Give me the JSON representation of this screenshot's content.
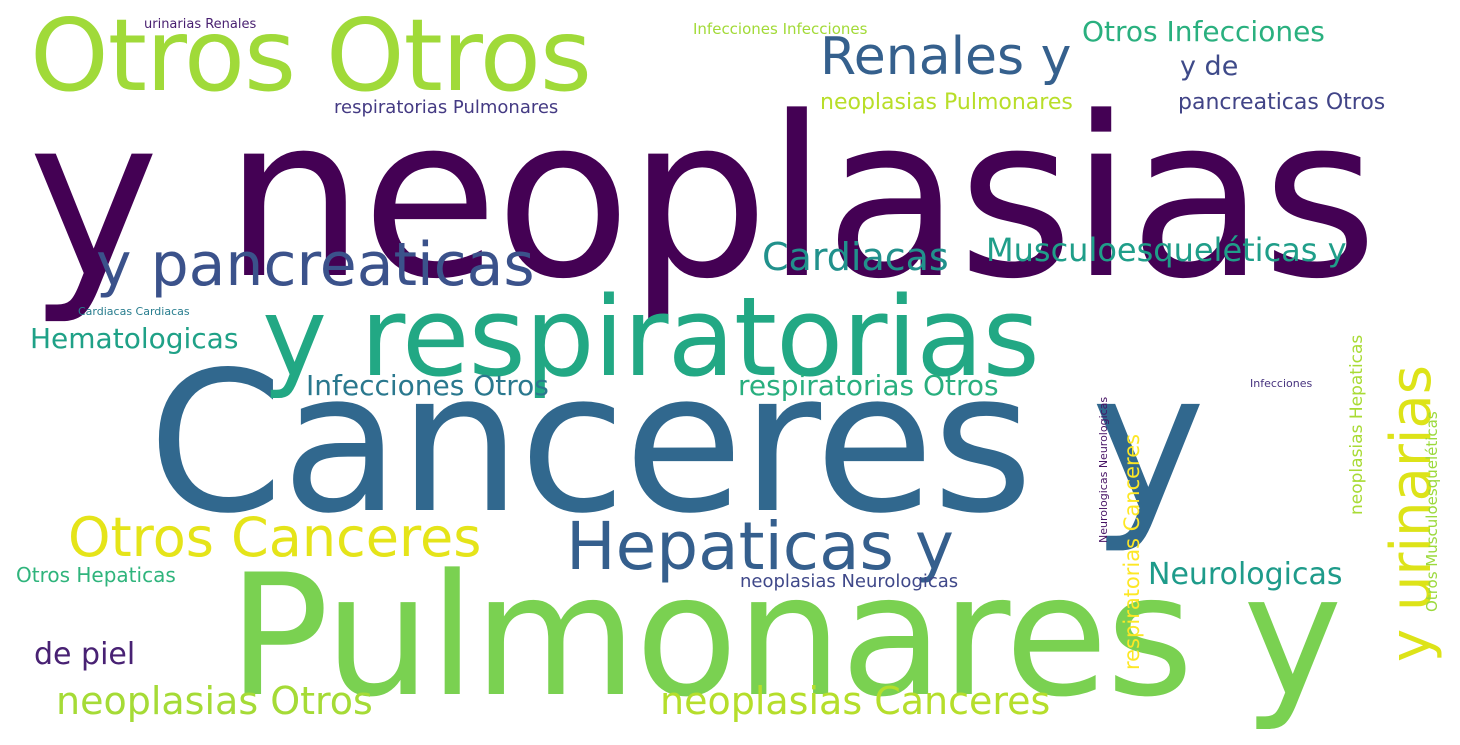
{
  "words": [
    {
      "text": "y neoplasias",
      "color": "#440154"
    },
    {
      "text": "Canceres y",
      "color": "#31688e"
    },
    {
      "text": "Pulmonares y",
      "color": "#7ad151"
    },
    {
      "text": "y respiratorias",
      "color": "#22a884"
    },
    {
      "text": "Otros Otros",
      "color": "#a0da39"
    },
    {
      "text": "y pancreaticas",
      "color": "#3b528b"
    },
    {
      "text": "Hepaticas y",
      "color": "#355f8d"
    },
    {
      "text": "Renales y",
      "color": "#35608d"
    },
    {
      "text": "Otros Canceres",
      "color": "#e5e419"
    },
    {
      "text": "Cardiacas",
      "color": "#21918c"
    },
    {
      "text": "Musculoesqueléticas y",
      "color": "#1f9e89"
    },
    {
      "text": "neoplasias Otros",
      "color": "#a5db36"
    },
    {
      "text": "neoplasias Canceres",
      "color": "#b5de2b"
    },
    {
      "text": "Otros Infecciones",
      "color": "#2ab07f"
    },
    {
      "text": "y de",
      "color": "#3e4a89"
    },
    {
      "text": "Neurologicas",
      "color": "#1e9b8a"
    },
    {
      "text": "Hematologicas",
      "color": "#1fa187"
    },
    {
      "text": "Infecciones Otros",
      "color": "#2a788e"
    },
    {
      "text": "respiratorias Otros",
      "color": "#29af7f"
    },
    {
      "text": "de piel",
      "color": "#482173"
    },
    {
      "text": "neoplasias Pulmonares",
      "color": "#b8de29"
    },
    {
      "text": "pancreaticas Otros",
      "color": "#414487"
    },
    {
      "text": "respiratorias Pulmonares",
      "color": "#443a83"
    },
    {
      "text": "Otros Hepaticas",
      "color": "#2fb47c"
    },
    {
      "text": "neoplasias Neurologicas",
      "color": "#3f4889"
    },
    {
      "text": "Infecciones Infecciones",
      "color": "#a2da37"
    },
    {
      "text": "urinarias Renales",
      "color": "#481f70"
    },
    {
      "text": "Cardiacas Cardiacas",
      "color": "#287d8e"
    },
    {
      "text": "Infecciones",
      "color": "#46327e"
    },
    {
      "text": "y urinarias",
      "color": "#dde318"
    },
    {
      "text": "respiratorias Canceres",
      "color": "#fde725"
    },
    {
      "text": "neoplasias Hepaticas",
      "color": "#a8db34"
    },
    {
      "text": "Otros Musculoesqueléticas",
      "color": "#9bd93c"
    },
    {
      "text": "Neurologicas Neurologicas",
      "color": "#471365"
    }
  ]
}
